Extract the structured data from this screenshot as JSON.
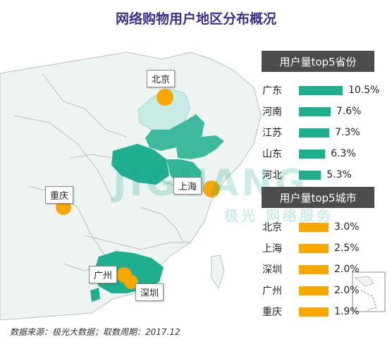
{
  "page": {
    "title": "网络购物用户地区分布概况",
    "source": "数据来源：极光大数据；取数周期：2017.12",
    "watermark": "极光  网络服务"
  },
  "colors": {
    "title": "#3d2f8e",
    "province_bar": "#1fae8e",
    "city_bar": "#f7a800",
    "panel_bg": "#4c4c4c",
    "map_base": "#eef4f1",
    "map_border": "#b9bfbd",
    "sea": "#ffffff",
    "beijing_region": "#c6ece5",
    "city_dot": "#f7a800"
  },
  "chart_data": [
    {
      "type": "bar",
      "title": "用户量top5省份",
      "categories": [
        "广东",
        "河南",
        "江苏",
        "山东",
        "河北"
      ],
      "values": [
        10.5,
        7.6,
        7.3,
        6.3,
        5.3
      ],
      "labels": [
        "10.5%",
        "7.6%",
        "7.3%",
        "6.3%",
        "5.3%"
      ],
      "unit": "%"
    },
    {
      "type": "bar",
      "title": "用户量top5城市",
      "categories": [
        "北京",
        "上海",
        "深圳",
        "广州",
        "重庆"
      ],
      "values": [
        3.0,
        2.5,
        2.0,
        2.0,
        1.9
      ],
      "labels": [
        "3.0%",
        "2.5%",
        "2.0%",
        "2.0%",
        "1.9%"
      ],
      "unit": "%"
    }
  ],
  "map": {
    "callouts": [
      "北京",
      "上海",
      "重庆",
      "广州",
      "深圳"
    ]
  }
}
